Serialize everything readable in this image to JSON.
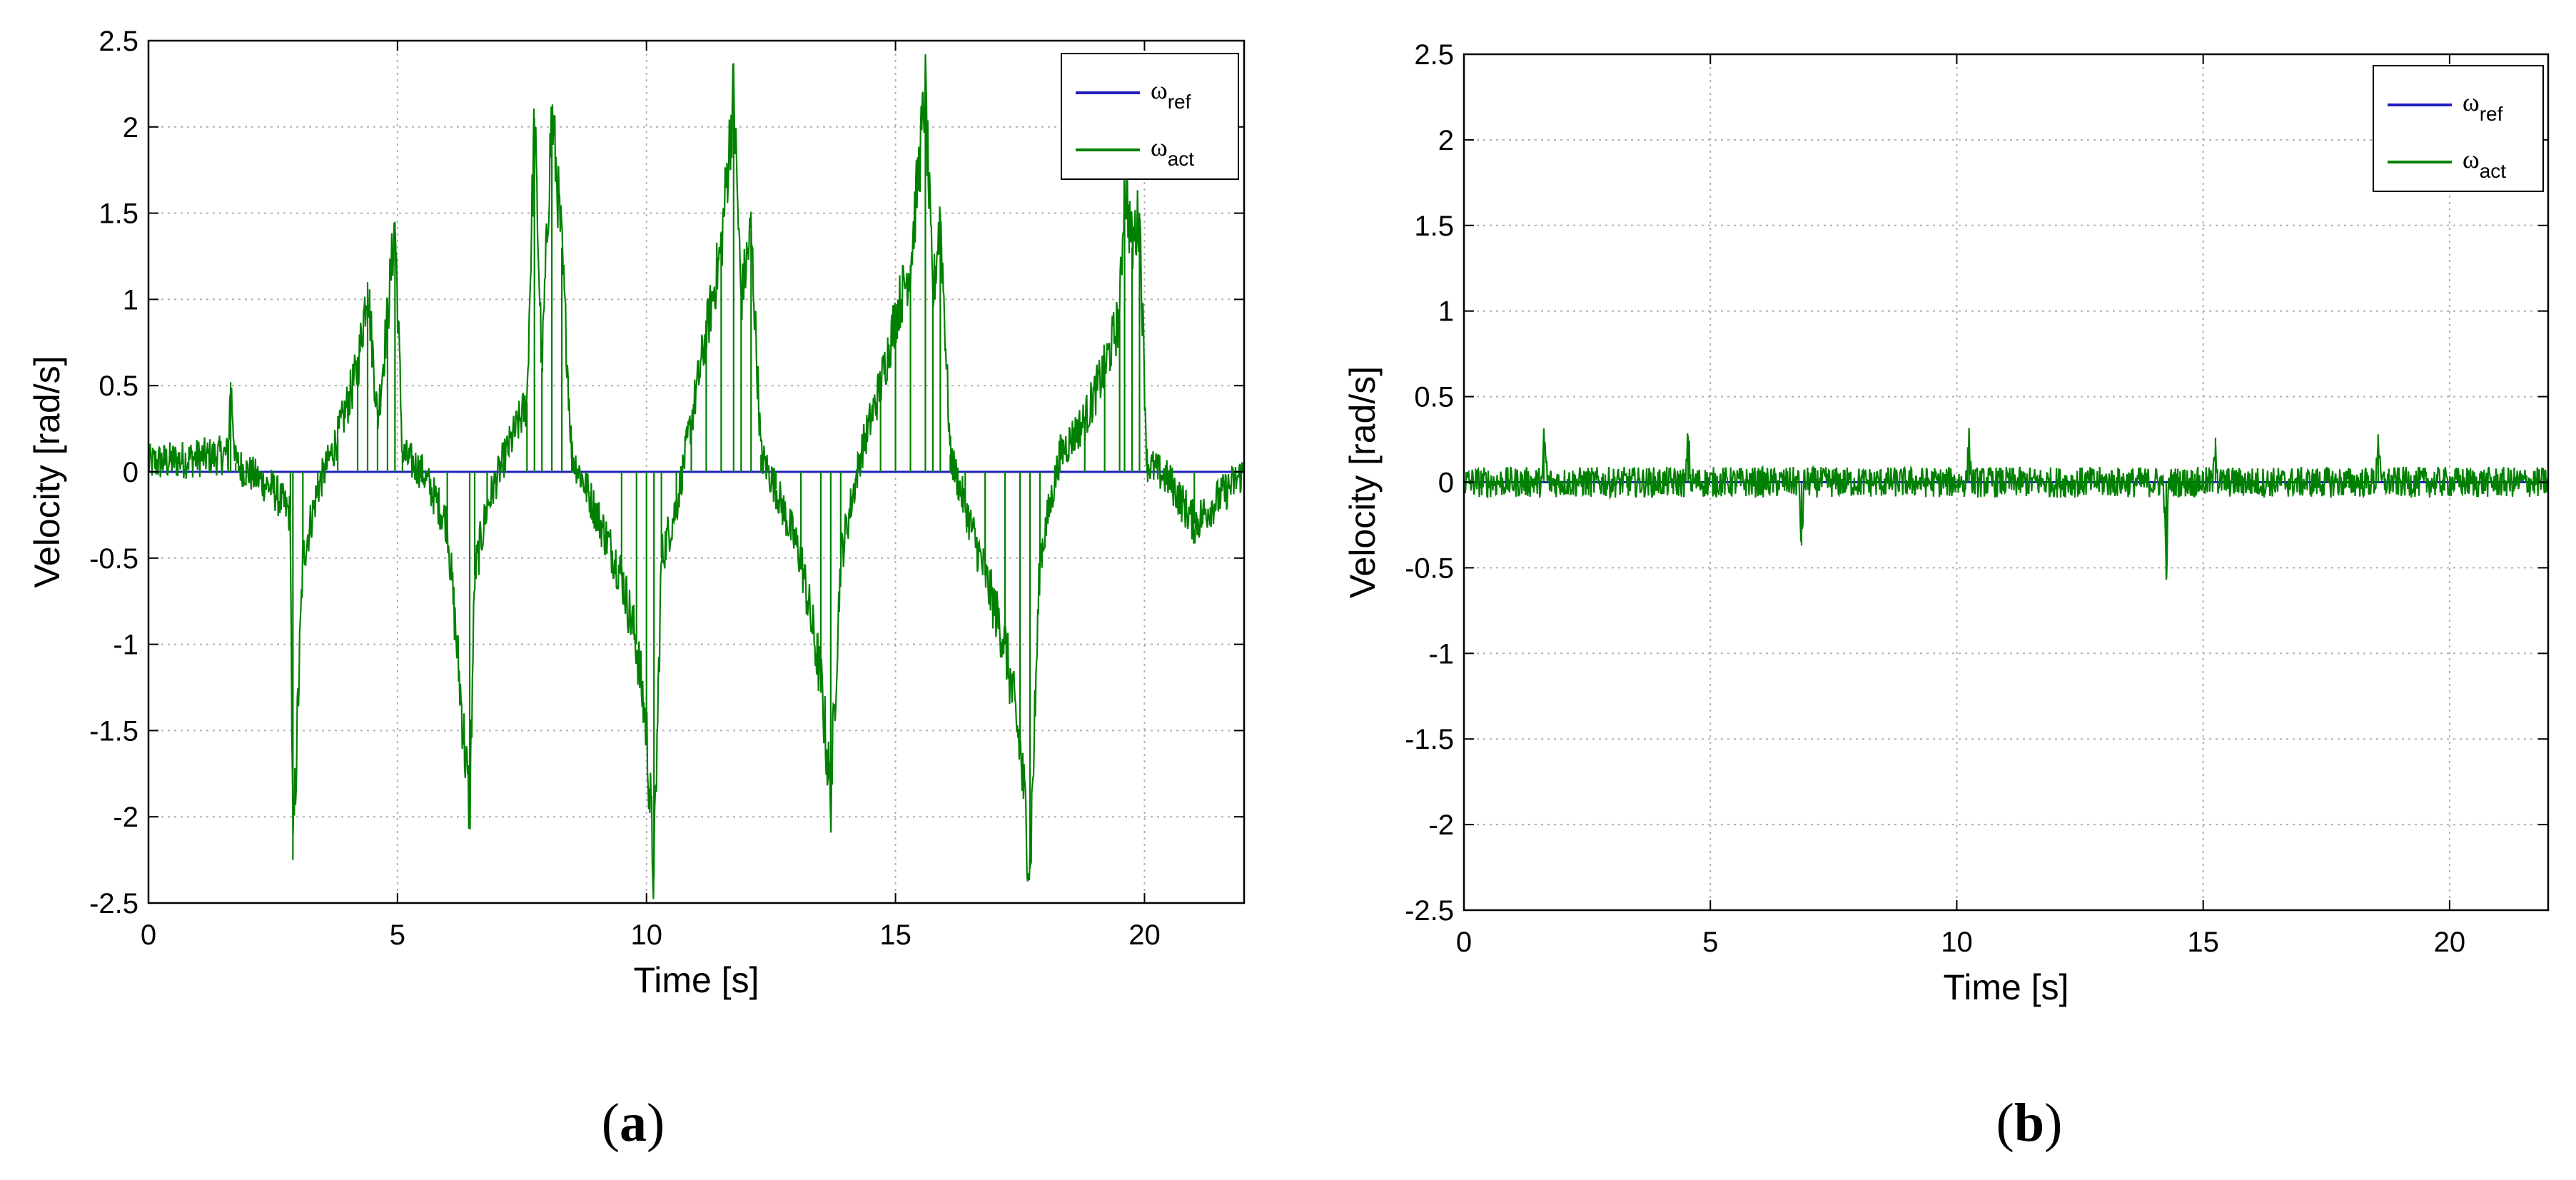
{
  "charts": [
    {
      "id": "a",
      "caption_open": "(",
      "caption_letter": "a",
      "caption_close": ")"
    },
    {
      "id": "b",
      "caption_open": "(",
      "caption_letter": "b",
      "caption_close": ")"
    }
  ],
  "colors": {
    "ref": "#1f1fbf",
    "act": "#008000",
    "grid": "#b0b0b0",
    "axis": "#000000"
  },
  "chart_data": [
    {
      "type": "line",
      "xlabel": "Time [s]",
      "ylabel": "Velocity [rad/s]",
      "xlim": [
        0,
        22
      ],
      "ylim": [
        -2.5,
        2.5
      ],
      "xticks": [
        0,
        5,
        10,
        15,
        20
      ],
      "yticks": [
        -2.5,
        -2,
        -1.5,
        -1,
        -0.5,
        0,
        0.5,
        1,
        1.5,
        2,
        2.5
      ],
      "grid": true,
      "legend_position": "top-right",
      "series": [
        {
          "name": "ω",
          "subscript": "ref",
          "color": "#1f1fbf",
          "x": [
            0,
            22
          ],
          "y": [
            0,
            0
          ]
        },
        {
          "name": "ω",
          "subscript": "act",
          "color": "#008000",
          "x": [
            0,
            1.6,
            1.65,
            1.75,
            2.5,
            2.85,
            2.9,
            3.1,
            3.4,
            3.8,
            4.2,
            4.4,
            4.6,
            4.8,
            4.95,
            5.1,
            5.5,
            6.0,
            6.45,
            6.55,
            6.8,
            7.1,
            7.6,
            7.75,
            7.9,
            8.1,
            8.3,
            8.5,
            8.8,
            9.5,
            9.8,
            10.0,
            10.15,
            10.3,
            10.6,
            10.9,
            11.2,
            11.5,
            11.75,
            11.9,
            12.1,
            12.3,
            12.6,
            13.1,
            13.5,
            13.7,
            13.9,
            14.3,
            14.7,
            15.0,
            15.3,
            15.6,
            15.75,
            15.9,
            16.1,
            16.4,
            16.8,
            17.2,
            17.5,
            17.7,
            17.9,
            18.3,
            18.8,
            19.2,
            19.5,
            19.6,
            19.75,
            19.9,
            20.05,
            20.5,
            21.0,
            22.0
          ],
          "y": [
            0.05,
            0.1,
            0.52,
            0.05,
            -0.1,
            -0.25,
            -2.25,
            -0.5,
            -0.1,
            0.2,
            0.6,
            1.1,
            0.3,
            0.9,
            1.45,
            0.1,
            0.0,
            -0.3,
            -1.97,
            -0.6,
            -0.2,
            0.05,
            0.4,
            2.05,
            0.6,
            2.1,
            1.3,
            0.1,
            -0.1,
            -0.6,
            -1.0,
            -1.5,
            -2.35,
            -0.5,
            -0.2,
            0.3,
            0.8,
            1.3,
            2.2,
            1.0,
            1.4,
            0.1,
            -0.1,
            -0.5,
            -1.2,
            -1.9,
            -0.5,
            0.1,
            0.5,
            0.9,
            1.2,
            2.2,
            1.0,
            1.5,
            0.1,
            -0.2,
            -0.6,
            -1.0,
            -1.6,
            -2.3,
            -0.5,
            0.1,
            0.3,
            0.6,
            0.9,
            1.7,
            1.3,
            1.5,
            0.05,
            -0.05,
            -0.3,
            0.0
          ]
        }
      ]
    },
    {
      "type": "line",
      "xlabel": "Time [s]",
      "ylabel": "Velocity [rad/s]",
      "xlim": [
        0,
        22
      ],
      "ylim": [
        -2.5,
        2.5
      ],
      "xticks": [
        0,
        5,
        10,
        15,
        20
      ],
      "yticks": [
        -2.5,
        -2,
        -1.5,
        -1,
        -0.5,
        0,
        0.5,
        1,
        1.5,
        2,
        2.5
      ],
      "grid": true,
      "legend_position": "top-right",
      "series": [
        {
          "name": "ω",
          "subscript": "ref",
          "color": "#1f1fbf",
          "x": [
            0,
            22
          ],
          "y": [
            0,
            0
          ]
        },
        {
          "name": "ω",
          "subscript": "act",
          "color": "#008000",
          "x": [
            0,
            1.6,
            1.62,
            1.7,
            4.5,
            4.55,
            4.6,
            6.8,
            6.85,
            6.9,
            10.2,
            10.25,
            10.3,
            14.2,
            14.25,
            14.3,
            15.2,
            15.25,
            15.3,
            18.5,
            18.55,
            18.6,
            22.0
          ],
          "y": [
            0.0,
            0.0,
            0.28,
            0.0,
            0.0,
            0.27,
            0.0,
            0.0,
            -0.37,
            0.0,
            0.0,
            0.24,
            0.0,
            0.0,
            -0.57,
            0.0,
            0.0,
            0.26,
            0.0,
            0.0,
            0.28,
            0.0,
            0.0
          ]
        }
      ]
    }
  ]
}
